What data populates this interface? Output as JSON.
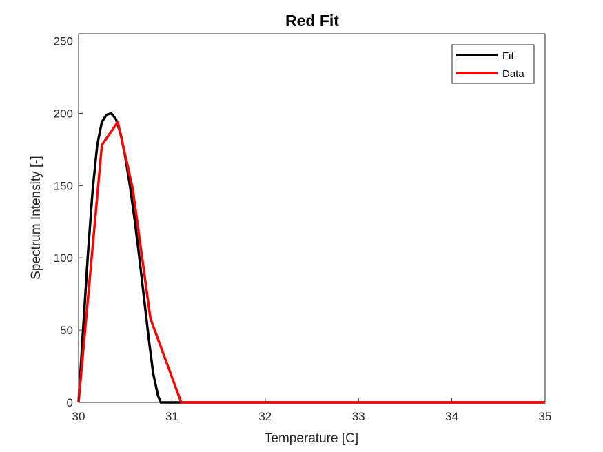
{
  "chart_data": {
    "type": "line",
    "title": "Red Fit",
    "xlabel": "Temperature [C]",
    "ylabel": "Spectrum Intensity [-]",
    "xlim": [
      30,
      35
    ],
    "ylim": [
      0,
      255
    ],
    "xticks": [
      30,
      31,
      32,
      33,
      34,
      35
    ],
    "yticks": [
      0,
      50,
      100,
      150,
      200,
      250
    ],
    "grid": false,
    "legend_position": "top-right",
    "series": [
      {
        "name": "Fit",
        "color": "#000000",
        "x": [
          30.0,
          30.05,
          30.1,
          30.15,
          30.2,
          30.25,
          30.3,
          30.35,
          30.4,
          30.45,
          30.5,
          30.55,
          30.6,
          30.65,
          30.7,
          30.75,
          30.8,
          30.85,
          30.88,
          30.9,
          31.0,
          32.0,
          33.0,
          34.0,
          35.0
        ],
        "y": [
          0,
          52,
          102,
          146,
          178,
          194,
          199,
          200,
          196,
          186,
          170,
          150,
          127,
          101,
          73,
          45,
          20,
          5,
          0,
          0,
          0,
          0,
          0,
          0,
          0
        ]
      },
      {
        "name": "Data",
        "color": "#ff0000",
        "x": [
          30.0,
          30.25,
          30.42,
          30.58,
          30.77,
          31.1,
          32.0,
          33.0,
          34.0,
          35.0
        ],
        "y": [
          0,
          178,
          194,
          148,
          58,
          0,
          0,
          0,
          0,
          0
        ]
      }
    ]
  }
}
